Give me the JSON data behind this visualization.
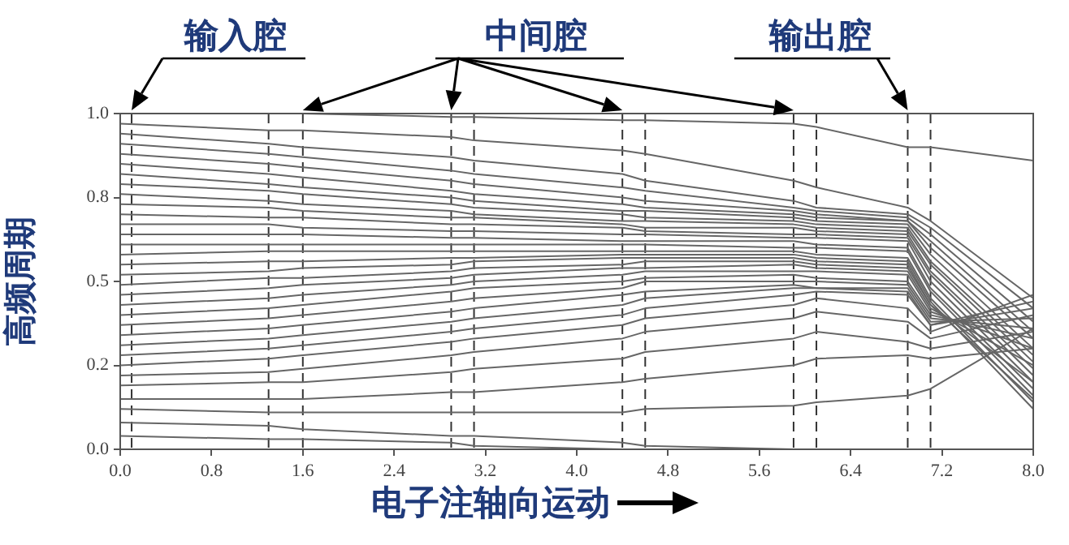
{
  "chart_data": {
    "type": "line",
    "ylabel": "高频周期",
    "xlabel": "电子注轴向运动",
    "annotations": [
      "输入腔",
      "中间腔",
      "输出腔"
    ],
    "x": [
      0,
      1.3,
      1.6,
      2.9,
      3.1,
      4.4,
      4.6,
      5.9,
      6.1,
      6.9,
      7.1,
      8.0
    ],
    "xlim": [
      0,
      8
    ],
    "xticks": [
      {
        "value": 0,
        "label": "0.0"
      },
      0.8,
      1.6,
      2.4,
      3.2,
      {
        "value": 4,
        "label": "4.0"
      },
      4.8,
      5.6,
      6.4,
      7.2,
      {
        "value": 8,
        "label": "8.0"
      }
    ],
    "ylim": [
      0,
      1
    ],
    "yticks": [
      {
        "value": 0,
        "label": "0.0"
      },
      {
        "value": 0.25,
        "label": "0.2"
      },
      0.5,
      {
        "value": 0.75,
        "label": "0.8"
      },
      {
        "value": 1,
        "label": "1.0"
      }
    ],
    "grid": false,
    "legend": false,
    "marker": "none",
    "line_style": "solid",
    "ref_lines": [
      {
        "axis": "x",
        "value": 0.1,
        "color": "#333333",
        "line_style": "dashed"
      },
      {
        "axis": "x",
        "value": 1.3,
        "color": "#333333",
        "line_style": "dashed"
      },
      {
        "axis": "x",
        "value": 1.6,
        "color": "#333333",
        "line_style": "dashed"
      },
      {
        "axis": "x",
        "value": 2.9,
        "color": "#333333",
        "line_style": "dashed"
      },
      {
        "axis": "x",
        "value": 3.1,
        "color": "#333333",
        "line_style": "dashed"
      },
      {
        "axis": "x",
        "value": 4.4,
        "color": "#333333",
        "line_style": "dashed"
      },
      {
        "axis": "x",
        "value": 4.6,
        "color": "#333333",
        "line_style": "dashed"
      },
      {
        "axis": "x",
        "value": 5.9,
        "color": "#333333",
        "line_style": "dashed"
      },
      {
        "axis": "x",
        "value": 6.1,
        "color": "#333333",
        "line_style": "dashed"
      },
      {
        "axis": "x",
        "value": 6.9,
        "color": "#333333",
        "line_style": "dashed"
      },
      {
        "axis": "x",
        "value": 7.1,
        "color": "#333333",
        "line_style": "dashed"
      }
    ],
    "series": [
      {
        "color": "#666666",
        "values": [
          1.0,
          1.0,
          1.0,
          0.99,
          0.99,
          0.98,
          0.98,
          0.97,
          0.96,
          0.9,
          0.9,
          0.86
        ]
      },
      {
        "color": "#666666",
        "values": [
          0.97,
          0.95,
          0.95,
          0.93,
          0.92,
          0.89,
          0.88,
          0.8,
          0.78,
          0.72,
          0.68,
          0.45
        ]
      },
      {
        "color": "#666666",
        "values": [
          0.94,
          0.91,
          0.9,
          0.87,
          0.86,
          0.82,
          0.8,
          0.74,
          0.72,
          0.7,
          0.66,
          0.42
        ]
      },
      {
        "color": "#666666",
        "values": [
          0.91,
          0.88,
          0.87,
          0.83,
          0.82,
          0.78,
          0.77,
          0.72,
          0.71,
          0.69,
          0.64,
          0.38
        ]
      },
      {
        "color": "#666666",
        "values": [
          0.88,
          0.85,
          0.84,
          0.8,
          0.79,
          0.75,
          0.74,
          0.71,
          0.7,
          0.68,
          0.62,
          0.35
        ]
      },
      {
        "color": "#666666",
        "values": [
          0.85,
          0.82,
          0.81,
          0.77,
          0.76,
          0.73,
          0.72,
          0.7,
          0.69,
          0.68,
          0.6,
          0.33
        ]
      },
      {
        "color": "#666666",
        "values": [
          0.82,
          0.79,
          0.78,
          0.75,
          0.74,
          0.71,
          0.71,
          0.69,
          0.68,
          0.67,
          0.58,
          0.3
        ]
      },
      {
        "color": "#666666",
        "values": [
          0.79,
          0.77,
          0.76,
          0.73,
          0.72,
          0.7,
          0.69,
          0.68,
          0.67,
          0.66,
          0.56,
          0.28
        ]
      },
      {
        "color": "#666666",
        "values": [
          0.76,
          0.74,
          0.73,
          0.71,
          0.7,
          0.68,
          0.68,
          0.67,
          0.66,
          0.65,
          0.55,
          0.26
        ]
      },
      {
        "color": "#666666",
        "values": [
          0.73,
          0.72,
          0.71,
          0.69,
          0.69,
          0.67,
          0.66,
          0.66,
          0.65,
          0.64,
          0.53,
          0.24
        ]
      },
      {
        "color": "#666666",
        "values": [
          0.7,
          0.69,
          0.69,
          0.67,
          0.67,
          0.66,
          0.65,
          0.64,
          0.64,
          0.63,
          0.52,
          0.22
        ]
      },
      {
        "color": "#666666",
        "values": [
          0.67,
          0.67,
          0.66,
          0.65,
          0.65,
          0.64,
          0.64,
          0.63,
          0.63,
          0.62,
          0.5,
          0.2
        ]
      },
      {
        "color": "#666666",
        "values": [
          0.64,
          0.64,
          0.64,
          0.63,
          0.63,
          0.62,
          0.62,
          0.62,
          0.61,
          0.6,
          0.48,
          0.18
        ]
      },
      {
        "color": "#666666",
        "values": [
          0.61,
          0.61,
          0.61,
          0.61,
          0.61,
          0.61,
          0.61,
          0.6,
          0.6,
          0.59,
          0.47,
          0.16
        ]
      },
      {
        "color": "#666666",
        "values": [
          0.58,
          0.59,
          0.59,
          0.59,
          0.59,
          0.59,
          0.59,
          0.59,
          0.58,
          0.57,
          0.45,
          0.14
        ]
      },
      {
        "color": "#666666",
        "values": [
          0.55,
          0.56,
          0.56,
          0.57,
          0.57,
          0.58,
          0.58,
          0.58,
          0.57,
          0.56,
          0.44,
          0.12
        ]
      },
      {
        "color": "#666666",
        "values": [
          0.52,
          0.53,
          0.54,
          0.55,
          0.56,
          0.57,
          0.57,
          0.57,
          0.56,
          0.55,
          0.43,
          0.15
        ]
      },
      {
        "color": "#666666",
        "values": [
          0.49,
          0.51,
          0.51,
          0.53,
          0.54,
          0.55,
          0.56,
          0.56,
          0.55,
          0.54,
          0.43,
          0.2
        ]
      },
      {
        "color": "#666666",
        "values": [
          0.46,
          0.48,
          0.49,
          0.51,
          0.52,
          0.54,
          0.54,
          0.55,
          0.54,
          0.53,
          0.42,
          0.25
        ]
      },
      {
        "color": "#666666",
        "values": [
          0.43,
          0.45,
          0.46,
          0.49,
          0.5,
          0.52,
          0.53,
          0.53,
          0.53,
          0.52,
          0.41,
          0.3
        ]
      },
      {
        "color": "#666666",
        "values": [
          0.4,
          0.42,
          0.43,
          0.47,
          0.48,
          0.5,
          0.51,
          0.52,
          0.51,
          0.5,
          0.4,
          0.33
        ]
      },
      {
        "color": "#666666",
        "values": [
          0.37,
          0.39,
          0.4,
          0.44,
          0.45,
          0.48,
          0.5,
          0.5,
          0.5,
          0.49,
          0.39,
          0.36
        ]
      },
      {
        "color": "#666666",
        "values": [
          0.34,
          0.36,
          0.37,
          0.41,
          0.42,
          0.46,
          0.47,
          0.49,
          0.48,
          0.48,
          0.38,
          0.39
        ]
      },
      {
        "color": "#666666",
        "values": [
          0.31,
          0.33,
          0.34,
          0.38,
          0.39,
          0.43,
          0.45,
          0.48,
          0.48,
          0.47,
          0.37,
          0.42
        ]
      },
      {
        "color": "#666666",
        "values": [
          0.28,
          0.3,
          0.31,
          0.35,
          0.36,
          0.4,
          0.42,
          0.46,
          0.47,
          0.46,
          0.37,
          0.44
        ]
      },
      {
        "color": "#666666",
        "values": [
          0.25,
          0.27,
          0.28,
          0.32,
          0.33,
          0.37,
          0.39,
          0.43,
          0.45,
          0.42,
          0.35,
          0.46
        ]
      },
      {
        "color": "#666666",
        "values": [
          0.22,
          0.23,
          0.24,
          0.28,
          0.29,
          0.33,
          0.35,
          0.39,
          0.41,
          0.38,
          0.33,
          0.4
        ]
      },
      {
        "color": "#666666",
        "values": [
          0.19,
          0.2,
          0.2,
          0.23,
          0.24,
          0.27,
          0.29,
          0.33,
          0.35,
          0.32,
          0.3,
          0.35
        ]
      },
      {
        "color": "#666666",
        "values": [
          0.15,
          0.15,
          0.15,
          0.17,
          0.17,
          0.2,
          0.21,
          0.25,
          0.27,
          0.28,
          0.27,
          0.3
        ]
      },
      {
        "color": "#666666",
        "values": [
          0.12,
          0.11,
          0.11,
          0.11,
          0.11,
          0.11,
          0.12,
          0.13,
          0.14,
          0.16,
          0.18,
          0.36
        ]
      },
      {
        "color": "#666666",
        "values": [
          0.08,
          0.07,
          0.06,
          0.04,
          0.04,
          0.02,
          0.01,
          0,
          null,
          null,
          null,
          null
        ]
      },
      {
        "color": "#666666",
        "values": [
          0.04,
          0.03,
          0.03,
          0.02,
          0.01,
          0,
          null,
          null,
          null,
          null,
          null,
          null
        ]
      }
    ]
  }
}
